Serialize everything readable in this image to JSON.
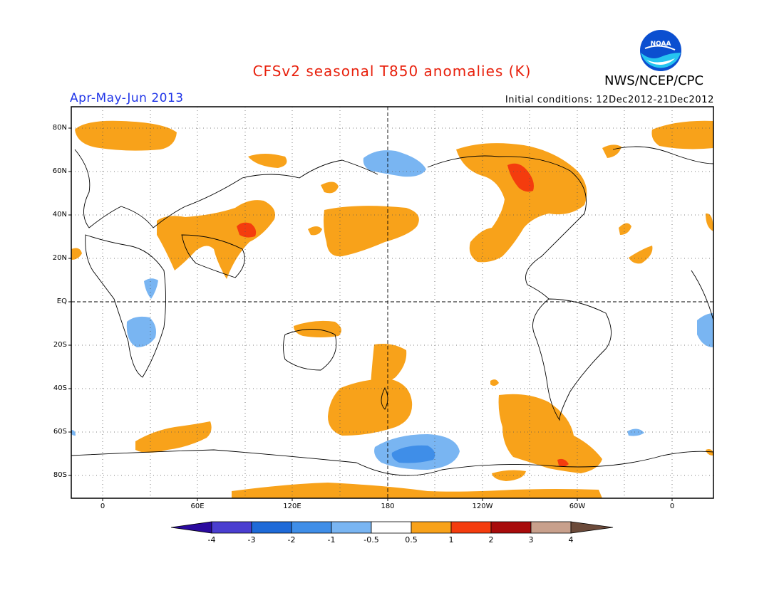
{
  "header": {
    "title": "CFSv2 seasonal T850 anomalies (K)",
    "period": "Apr-May-Jun 2013",
    "initial_conditions": "Initial conditions: 12Dec2012-21Dec2012",
    "agency": "NWS/NCEP/CPC",
    "logo_text": "NOAA"
  },
  "map": {
    "lat_labels": [
      "80N",
      "60N",
      "40N",
      "20N",
      "EQ",
      "20S",
      "40S",
      "60S",
      "80S"
    ],
    "lon_labels": [
      "0",
      "60E",
      "120E",
      "180",
      "120W",
      "60W",
      "0"
    ]
  },
  "colorbar": {
    "labels": [
      "-4",
      "-3",
      "-2",
      "-1",
      "-0.5",
      "0.5",
      "1",
      "2",
      "3",
      "4"
    ],
    "colors": [
      "#2a0a9e",
      "#4a3ed0",
      "#1e6ad8",
      "#3f8ee8",
      "#79b5f2",
      "#ffffff",
      "#f8a21a",
      "#f43c0e",
      "#a80b0b",
      "#c8a08c",
      "#6b4a3a"
    ]
  }
}
